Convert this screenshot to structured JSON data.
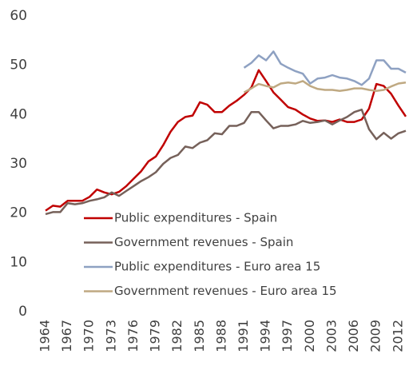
{
  "chart_data": {
    "type": "line",
    "x": [
      1964,
      1965,
      1966,
      1967,
      1968,
      1969,
      1970,
      1971,
      1972,
      1973,
      1974,
      1975,
      1976,
      1977,
      1978,
      1979,
      1980,
      1981,
      1982,
      1983,
      1984,
      1985,
      1986,
      1987,
      1988,
      1989,
      1990,
      1991,
      1992,
      1993,
      1994,
      1995,
      1996,
      1997,
      1998,
      1999,
      2000,
      2001,
      2002,
      2003,
      2004,
      2005,
      2006,
      2007,
      2008,
      2009,
      2010,
      2011,
      2012,
      2013
    ],
    "xlim": [
      1964,
      2013
    ],
    "xticks": [
      1964,
      1967,
      1970,
      1973,
      1976,
      1979,
      1982,
      1985,
      1988,
      1991,
      1994,
      1997,
      2000,
      2003,
      2006,
      2009,
      2012
    ],
    "ylim": [
      0,
      60
    ],
    "yticks": [
      0,
      10,
      20,
      30,
      40,
      50,
      60
    ],
    "legend": "lower center",
    "series": [
      {
        "name": "Public expenditures - Spain",
        "color": "#c00000",
        "values": [
          20.5,
          21.5,
          21.3,
          22.5,
          22.5,
          22.5,
          23.3,
          24.8,
          24.2,
          23.8,
          24.3,
          25.5,
          27,
          28.5,
          30.5,
          31.5,
          33.8,
          36.5,
          38.5,
          39.5,
          39.8,
          42.5,
          42,
          40.5,
          40.5,
          41.8,
          42.8,
          44,
          45.5,
          49,
          46.8,
          44.5,
          43,
          41.5,
          41,
          40,
          39.2,
          38.7,
          38.8,
          38.5,
          39,
          38.5,
          38.5,
          39,
          41.2,
          46.2,
          45.8,
          44.2,
          41.8,
          39.6
        ]
      },
      {
        "name": "Government revenues - Spain",
        "color": "#76615a",
        "values": [
          19.8,
          20.2,
          20.2,
          22,
          21.8,
          22,
          22.5,
          22.8,
          23.2,
          24.2,
          23.5,
          24.5,
          25.5,
          26.5,
          27.3,
          28.3,
          30,
          31.2,
          31.8,
          33.5,
          33.2,
          34.3,
          34.8,
          36.2,
          36,
          37.7,
          37.7,
          38.3,
          40.5,
          40.5,
          38.8,
          37.2,
          37.7,
          37.7,
          38,
          38.7,
          38.3,
          38.5,
          38.8,
          38,
          38.8,
          39.5,
          40.5,
          41,
          37,
          35,
          36.3,
          35.1,
          36.2,
          36.7
        ]
      },
      {
        "name": "Public expenditures - Euro area 15",
        "color": "#8ea1c2",
        "values": [
          null,
          null,
          null,
          null,
          null,
          null,
          null,
          null,
          null,
          null,
          null,
          null,
          null,
          null,
          null,
          null,
          null,
          null,
          null,
          null,
          null,
          null,
          null,
          null,
          null,
          null,
          null,
          49.5,
          50.5,
          52,
          51,
          52.8,
          50.3,
          49.5,
          48.8,
          48.3,
          46.3,
          47.3,
          47.5,
          48,
          47.5,
          47.3,
          46.8,
          46,
          47.3,
          51,
          51,
          49.3,
          49.3,
          48.5
        ]
      },
      {
        "name": "Government revenues - Euro area 15",
        "color": "#bfa982",
        "values": [
          null,
          null,
          null,
          null,
          null,
          null,
          null,
          null,
          null,
          null,
          null,
          null,
          null,
          null,
          null,
          null,
          null,
          null,
          null,
          null,
          null,
          null,
          null,
          null,
          null,
          null,
          null,
          44.5,
          45.3,
          46.2,
          45.8,
          45.5,
          46.3,
          46.5,
          46.3,
          46.8,
          45.8,
          45.2,
          45,
          45,
          44.8,
          45,
          45.3,
          45.3,
          45,
          44.8,
          45,
          45.7,
          46.3,
          46.5
        ]
      }
    ]
  }
}
